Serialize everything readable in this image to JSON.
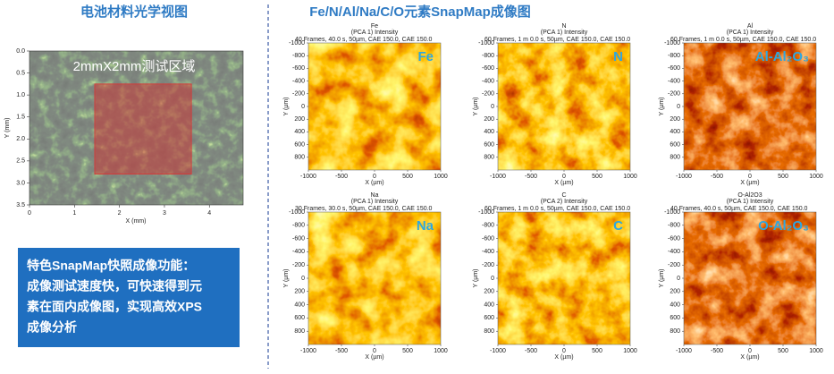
{
  "left": {
    "title": "电池材料光学视图",
    "region_label": "2mmX2mm测试区域",
    "x_label": "X (mm)",
    "y_label": "Y (mm)",
    "xticks": [
      0,
      1,
      2,
      3,
      4
    ],
    "yticks": [
      {
        "value": 0,
        "label": "0.0"
      },
      0.5,
      {
        "value": 1,
        "label": "1.0"
      },
      1.5,
      {
        "value": 2,
        "label": "2.0"
      },
      2.5,
      {
        "value": 3,
        "label": "3.0"
      },
      3.5
    ],
    "note": [
      "特色SnapMap快照成像功能：",
      "成像测试速度快，可快速得到元",
      "素在面内成像图，实现高效XPS",
      "成像分析"
    ]
  },
  "right": {
    "title": "Fe/N/Al/Na/C/O元素SnapMap成像图",
    "x_label": "X (µm)",
    "y_label": "Y (µm)",
    "xticks": [
      -1000,
      -500,
      0,
      500,
      1000
    ],
    "yticks": [
      -1000,
      -800,
      -600,
      -400,
      -200,
      0,
      200,
      400,
      600,
      800
    ],
    "maps": [
      {
        "name": "Fe",
        "component": "(PCA 1)   Intensity",
        "acquisition": "40 Frames,  40.0 s,  50µm,  CAE 150.0,  CAE 150.0",
        "label": "Fe"
      },
      {
        "name": "N",
        "component": "(PCA 1)   Intensity",
        "acquisition": "60 Frames,  1 m 0.0 s,  50µm,  CAE 150.0,  CAE 150.0",
        "label": "N"
      },
      {
        "name": "Al",
        "component": "(PCA 1)   Intensity",
        "acquisition": "60 Frames,  1 m 0.0 s,  50µm,  CAE 150.0,  CAE 150.0",
        "label": "Al-Al₂O₃"
      },
      {
        "name": "Na",
        "component": "(PCA 1)   Intensity",
        "acquisition": "30 Frames,  30.0 s,  50µm,  CAE 150.0,  CAE 150.0",
        "label": "Na"
      },
      {
        "name": "C",
        "component": "(PCA 2)   Intensity",
        "acquisition": "60 Frames,  1 m 0.0 s,  50µm,  CAE 150.0,  CAE 150.0",
        "label": "C"
      },
      {
        "name": "O-Al2O3",
        "component": "(PCA 1)   Intensity",
        "acquisition": "40 Frames,  40.0 s,  50µm,  CAE 150.0,  CAE 150.0",
        "label": "O-Al₂O₃"
      }
    ]
  }
}
